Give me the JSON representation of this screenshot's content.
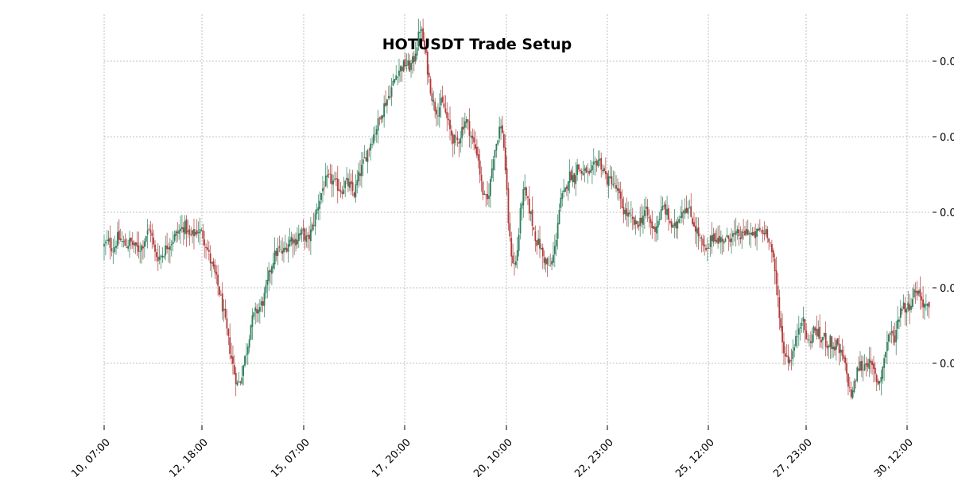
{
  "chart_data": {
    "type": "candlestick",
    "title": "HOTUSDT Trade Setup",
    "xlabel": "",
    "ylabel": "",
    "grid": true,
    "x_ticks": [
      "10, 07:00",
      "12, 18:00",
      "15, 07:00",
      "17, 20:00",
      "20, 10:00",
      "22, 23:00",
      "25, 12:00",
      "27, 23:00",
      "30, 12:00"
    ],
    "y_ticks": [
      "0.0",
      "0.0",
      "0.0",
      "0.0",
      "0.0"
    ],
    "colors": {
      "up": "#2e7d5b",
      "down": "#b03a3a"
    },
    "series": [
      {
        "close_path": [
          [
            0,
            0.44
          ],
          [
            0.4,
            0.45
          ],
          [
            0.9,
            0.43
          ],
          [
            1.3,
            0.46
          ],
          [
            1.7,
            0.45
          ],
          [
            2.1,
            0.44
          ],
          [
            2.5,
            0.45
          ],
          [
            2.9,
            0.44
          ],
          [
            3.3,
            0.43
          ],
          [
            3.7,
            0.44
          ],
          [
            4.1,
            0.47
          ],
          [
            4.5,
            0.48
          ],
          [
            4.9,
            0.42
          ],
          [
            5.3,
            0.41
          ],
          [
            5.7,
            0.42
          ],
          [
            6.1,
            0.44
          ],
          [
            6.5,
            0.45
          ],
          [
            7.0,
            0.47
          ],
          [
            7.4,
            0.48
          ],
          [
            7.8,
            0.49
          ],
          [
            8.3,
            0.46
          ],
          [
            8.7,
            0.47
          ],
          [
            9.1,
            0.48
          ],
          [
            9.5,
            0.47
          ],
          [
            9.9,
            0.44
          ],
          [
            10.3,
            0.4
          ],
          [
            10.7,
            0.37
          ],
          [
            11.1,
            0.33
          ],
          [
            11.5,
            0.28
          ],
          [
            11.9,
            0.22
          ],
          [
            12.3,
            0.16
          ],
          [
            12.6,
            0.12
          ],
          [
            12.9,
            0.09
          ],
          [
            13.2,
            0.1
          ],
          [
            13.5,
            0.14
          ],
          [
            13.9,
            0.19
          ],
          [
            14.2,
            0.24
          ],
          [
            14.6,
            0.27
          ],
          [
            15.0,
            0.28
          ],
          [
            15.4,
            0.3
          ],
          [
            15.7,
            0.33
          ],
          [
            16.0,
            0.37
          ],
          [
            16.3,
            0.4
          ],
          [
            16.6,
            0.42
          ],
          [
            16.9,
            0.43
          ],
          [
            17.3,
            0.42
          ],
          [
            17.7,
            0.44
          ],
          [
            18.1,
            0.46
          ],
          [
            18.5,
            0.45
          ],
          [
            18.9,
            0.47
          ],
          [
            19.3,
            0.47
          ],
          [
            19.7,
            0.45
          ],
          [
            20.1,
            0.48
          ],
          [
            20.5,
            0.52
          ],
          [
            20.8,
            0.55
          ],
          [
            21.1,
            0.58
          ],
          [
            21.4,
            0.6
          ],
          [
            21.8,
            0.61
          ],
          [
            22.2,
            0.6
          ],
          [
            22.6,
            0.59
          ],
          [
            23.0,
            0.58
          ],
          [
            23.4,
            0.6
          ],
          [
            23.8,
            0.59
          ],
          [
            24.2,
            0.57
          ],
          [
            24.6,
            0.61
          ],
          [
            25.0,
            0.64
          ],
          [
            25.4,
            0.67
          ],
          [
            25.8,
            0.7
          ],
          [
            26.1,
            0.72
          ],
          [
            26.4,
            0.74
          ],
          [
            26.8,
            0.77
          ],
          [
            27.2,
            0.8
          ],
          [
            27.6,
            0.82
          ],
          [
            28.0,
            0.85
          ],
          [
            28.4,
            0.88
          ],
          [
            28.8,
            0.89
          ],
          [
            29.2,
            0.9
          ],
          [
            29.6,
            0.89
          ],
          [
            30.0,
            0.91
          ],
          [
            30.2,
            0.94
          ],
          [
            30.4,
            0.96
          ],
          [
            30.6,
            0.99
          ],
          [
            30.8,
            0.97
          ],
          [
            31.0,
            0.94
          ],
          [
            31.2,
            0.91
          ],
          [
            31.4,
            0.87
          ],
          [
            31.6,
            0.84
          ],
          [
            31.8,
            0.81
          ],
          [
            32.0,
            0.79
          ],
          [
            32.3,
            0.78
          ],
          [
            32.6,
            0.8
          ],
          [
            32.9,
            0.79
          ],
          [
            33.2,
            0.76
          ],
          [
            33.5,
            0.73
          ],
          [
            33.8,
            0.71
          ],
          [
            34.1,
            0.7
          ],
          [
            34.4,
            0.71
          ],
          [
            34.7,
            0.74
          ],
          [
            35.0,
            0.76
          ],
          [
            35.3,
            0.74
          ],
          [
            35.6,
            0.71
          ],
          [
            35.9,
            0.69
          ],
          [
            36.2,
            0.67
          ],
          [
            36.5,
            0.6
          ],
          [
            36.8,
            0.56
          ],
          [
            37.1,
            0.55
          ],
          [
            37.4,
            0.6
          ],
          [
            37.7,
            0.67
          ],
          [
            38.0,
            0.7
          ],
          [
            38.3,
            0.74
          ],
          [
            38.6,
            0.73
          ],
          [
            38.9,
            0.62
          ],
          [
            39.1,
            0.52
          ],
          [
            39.3,
            0.45
          ],
          [
            39.5,
            0.41
          ],
          [
            39.7,
            0.39
          ],
          [
            39.9,
            0.4
          ],
          [
            40.1,
            0.45
          ],
          [
            40.4,
            0.55
          ],
          [
            40.7,
            0.58
          ],
          [
            41.0,
            0.55
          ],
          [
            41.3,
            0.52
          ],
          [
            41.6,
            0.48
          ],
          [
            41.9,
            0.45
          ],
          [
            42.2,
            0.44
          ],
          [
            42.5,
            0.41
          ],
          [
            42.8,
            0.4
          ],
          [
            43.1,
            0.38
          ],
          [
            43.4,
            0.4
          ],
          [
            43.7,
            0.44
          ],
          [
            44.0,
            0.52
          ],
          [
            44.3,
            0.56
          ],
          [
            44.6,
            0.57
          ],
          [
            44.9,
            0.61
          ],
          [
            45.2,
            0.62
          ],
          [
            45.5,
            0.61
          ],
          [
            45.8,
            0.64
          ],
          [
            46.1,
            0.63
          ],
          [
            46.4,
            0.62
          ],
          [
            46.7,
            0.63
          ],
          [
            47.0,
            0.61
          ],
          [
            47.3,
            0.63
          ],
          [
            47.6,
            0.65
          ],
          [
            47.9,
            0.66
          ],
          [
            48.2,
            0.64
          ],
          [
            48.5,
            0.62
          ],
          [
            48.8,
            0.6
          ],
          [
            49.1,
            0.61
          ],
          [
            49.4,
            0.59
          ],
          [
            49.7,
            0.58
          ],
          [
            50.0,
            0.55
          ],
          [
            50.3,
            0.53
          ],
          [
            50.6,
            0.52
          ],
          [
            50.9,
            0.51
          ],
          [
            51.2,
            0.5
          ],
          [
            51.5,
            0.49
          ],
          [
            51.8,
            0.5
          ],
          [
            52.1,
            0.51
          ],
          [
            52.4,
            0.53
          ],
          [
            52.7,
            0.51
          ],
          [
            53.0,
            0.49
          ],
          [
            53.3,
            0.48
          ],
          [
            53.6,
            0.5
          ],
          [
            53.9,
            0.52
          ],
          [
            54.2,
            0.54
          ],
          [
            54.5,
            0.52
          ],
          [
            54.8,
            0.5
          ],
          [
            55.1,
            0.48
          ],
          [
            55.4,
            0.49
          ],
          [
            55.7,
            0.52
          ],
          [
            56.0,
            0.53
          ],
          [
            56.3,
            0.54
          ],
          [
            56.6,
            0.53
          ],
          [
            56.9,
            0.51
          ],
          [
            57.2,
            0.49
          ],
          [
            57.5,
            0.47
          ],
          [
            57.8,
            0.45
          ],
          [
            58.1,
            0.43
          ],
          [
            58.4,
            0.42
          ],
          [
            58.7,
            0.45
          ],
          [
            59.0,
            0.47
          ],
          [
            59.3,
            0.46
          ],
          [
            59.6,
            0.45
          ],
          [
            59.9,
            0.46
          ],
          [
            60.2,
            0.45
          ],
          [
            60.5,
            0.46
          ],
          [
            60.8,
            0.47
          ],
          [
            61.1,
            0.46
          ],
          [
            61.4,
            0.47
          ],
          [
            61.7,
            0.46
          ],
          [
            62.0,
            0.47
          ],
          [
            62.3,
            0.48
          ],
          [
            62.6,
            0.47
          ],
          [
            62.9,
            0.46
          ],
          [
            63.2,
            0.47
          ],
          [
            63.5,
            0.48
          ],
          [
            63.8,
            0.47
          ],
          [
            64.1,
            0.48
          ],
          [
            64.4,
            0.46
          ],
          [
            64.7,
            0.42
          ],
          [
            64.9,
            0.38
          ],
          [
            65.1,
            0.34
          ],
          [
            65.3,
            0.3
          ],
          [
            65.5,
            0.24
          ],
          [
            65.7,
            0.19
          ],
          [
            65.9,
            0.17
          ],
          [
            66.1,
            0.16
          ],
          [
            66.4,
            0.15
          ],
          [
            66.7,
            0.17
          ],
          [
            67.0,
            0.2
          ],
          [
            67.3,
            0.24
          ],
          [
            67.6,
            0.26
          ],
          [
            67.9,
            0.22
          ],
          [
            68.2,
            0.19
          ],
          [
            68.5,
            0.21
          ],
          [
            68.8,
            0.23
          ],
          [
            69.1,
            0.22
          ],
          [
            69.4,
            0.2
          ],
          [
            69.7,
            0.21
          ],
          [
            70.0,
            0.19
          ],
          [
            70.3,
            0.2
          ],
          [
            70.6,
            0.18
          ],
          [
            70.9,
            0.19
          ],
          [
            71.2,
            0.17
          ],
          [
            71.5,
            0.16
          ],
          [
            71.8,
            0.13
          ],
          [
            72.1,
            0.09
          ],
          [
            72.3,
            0.06
          ],
          [
            72.6,
            0.08
          ],
          [
            72.9,
            0.12
          ],
          [
            73.2,
            0.14
          ],
          [
            73.5,
            0.13
          ],
          [
            73.8,
            0.15
          ],
          [
            74.1,
            0.14
          ],
          [
            74.4,
            0.13
          ],
          [
            74.7,
            0.11
          ],
          [
            75.0,
            0.09
          ],
          [
            75.3,
            0.12
          ],
          [
            75.6,
            0.16
          ],
          [
            75.9,
            0.21
          ],
          [
            76.2,
            0.22
          ],
          [
            76.5,
            0.2
          ],
          [
            76.8,
            0.24
          ],
          [
            77.1,
            0.28
          ],
          [
            77.4,
            0.29
          ],
          [
            77.7,
            0.28
          ],
          [
            78.0,
            0.29
          ],
          [
            78.3,
            0.31
          ],
          [
            78.6,
            0.33
          ],
          [
            78.9,
            0.32
          ],
          [
            79.2,
            0.3
          ],
          [
            79.5,
            0.29
          ],
          [
            79.8,
            0.28
          ],
          [
            80.0,
            0.27
          ]
        ],
        "x_range": [
          0,
          80
        ],
        "y_range": [
          0,
          1
        ]
      }
    ]
  }
}
